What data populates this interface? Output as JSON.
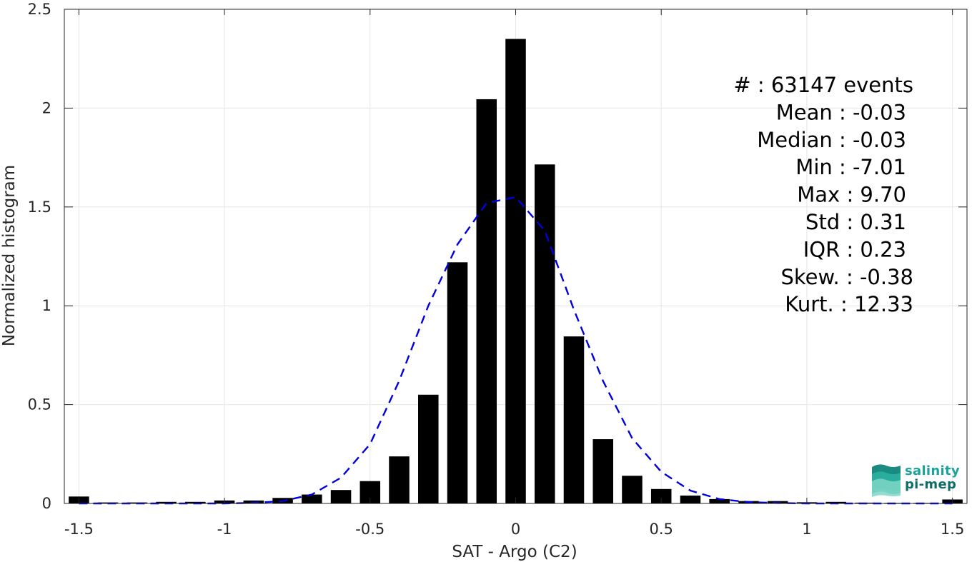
{
  "chart_data": {
    "type": "bar",
    "xlabel": "SAT - Argo (C2)",
    "ylabel": "Normalized histogram",
    "xlim": [
      -1.55,
      1.55
    ],
    "ylim": [
      0,
      2.5
    ],
    "xticks": [
      -1.5,
      -1,
      -0.5,
      0,
      0.5,
      1,
      1.5
    ],
    "xtick_labels": [
      "-1.5",
      "-1",
      "-0.5",
      "0",
      "0.5",
      "1",
      "1.5"
    ],
    "yticks": [
      0,
      0.5,
      1,
      1.5,
      2,
      2.5
    ],
    "ytick_labels": [
      "0",
      "0.5",
      "1",
      "1.5",
      "2",
      "2.5"
    ],
    "grid": true,
    "bar_width": 0.07,
    "series": [
      {
        "type": "bar",
        "color": "#000000",
        "x": [
          -1.5,
          -1.4,
          -1.3,
          -1.2,
          -1.1,
          -1.0,
          -0.9,
          -0.8,
          -0.7,
          -0.6,
          -0.5,
          -0.4,
          -0.3,
          -0.2,
          -0.1,
          0.0,
          0.1,
          0.2,
          0.3,
          0.4,
          0.5,
          0.6,
          0.7,
          0.8,
          0.9,
          1.0,
          1.1,
          1.2,
          1.3,
          1.4,
          1.5
        ],
        "values": [
          0.035,
          0.005,
          0.005,
          0.008,
          0.008,
          0.015,
          0.015,
          0.028,
          0.045,
          0.068,
          0.113,
          0.238,
          0.55,
          1.22,
          2.045,
          2.35,
          1.715,
          0.845,
          0.325,
          0.14,
          0.073,
          0.04,
          0.022,
          0.012,
          0.012,
          0.006,
          0.008,
          0.004,
          0.003,
          0.003,
          0.02
        ]
      },
      {
        "type": "line",
        "style": "dashed",
        "color": "#0000dd",
        "x": [
          -1.5,
          -1.4,
          -1.3,
          -1.2,
          -1.1,
          -1.0,
          -0.9,
          -0.8,
          -0.7,
          -0.6,
          -0.5,
          -0.4,
          -0.3,
          -0.2,
          -0.1,
          0.0,
          0.1,
          0.2,
          0.3,
          0.4,
          0.5,
          0.6,
          0.7,
          0.8,
          0.9,
          1.0,
          1.1,
          1.2,
          1.3,
          1.4,
          1.5
        ],
        "values": [
          0.0,
          0.0,
          0.0,
          0.0,
          0.0,
          0.0,
          0.003,
          0.012,
          0.045,
          0.13,
          0.3,
          0.62,
          1.0,
          1.31,
          1.52,
          1.55,
          1.38,
          0.98,
          0.62,
          0.33,
          0.16,
          0.065,
          0.022,
          0.007,
          0.002,
          0.0,
          0.0,
          0.0,
          0.0,
          0.0,
          0.0
        ]
      }
    ],
    "annotations": [
      "#  : 63147 events",
      "Mean : -0.03",
      "Median : -0.03",
      "Min : -7.01",
      "Max : 9.70",
      "Std : 0.31",
      "IQR : 0.23",
      "Skew. : -0.38",
      "Kurt. : 12.33"
    ]
  },
  "logo": {
    "line1": "salinity",
    "line2": "pi-mep"
  }
}
